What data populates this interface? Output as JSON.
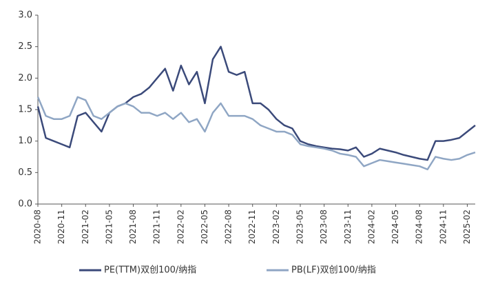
{
  "chart_data": {
    "type": "line",
    "x": [
      "2020-08",
      "2020-09",
      "2020-10",
      "2020-11",
      "2020-12",
      "2021-01",
      "2021-02",
      "2021-03",
      "2021-04",
      "2021-05",
      "2021-06",
      "2021-07",
      "2021-08",
      "2021-09",
      "2021-10",
      "2021-11",
      "2021-12",
      "2022-01",
      "2022-02",
      "2022-03",
      "2022-04",
      "2022-05",
      "2022-06",
      "2022-07",
      "2022-08",
      "2022-09",
      "2022-10",
      "2022-11",
      "2022-12",
      "2023-01",
      "2023-02",
      "2023-03",
      "2023-04",
      "2023-05",
      "2023-06",
      "2023-07",
      "2023-08",
      "2023-09",
      "2023-10",
      "2023-11",
      "2023-12",
      "2024-01",
      "2024-02",
      "2024-03",
      "2024-04",
      "2024-05",
      "2024-06",
      "2024-07",
      "2024-08",
      "2024-09",
      "2024-10",
      "2024-11",
      "2024-12",
      "2025-01",
      "2025-02",
      "2025-03"
    ],
    "series": [
      {
        "name": "PE(TTM)双创100/纳指",
        "color": "#3b4a7a",
        "values": [
          1.55,
          1.05,
          1.0,
          0.95,
          0.9,
          1.4,
          1.45,
          1.3,
          1.15,
          1.45,
          1.55,
          1.6,
          1.7,
          1.75,
          1.85,
          2.0,
          2.15,
          1.8,
          2.2,
          1.9,
          2.1,
          1.6,
          2.3,
          2.5,
          2.1,
          2.05,
          2.1,
          1.6,
          1.6,
          1.5,
          1.35,
          1.25,
          1.2,
          1.0,
          0.95,
          0.92,
          0.9,
          0.88,
          0.87,
          0.85,
          0.9,
          0.75,
          0.8,
          0.88,
          0.85,
          0.82,
          0.78,
          0.75,
          0.72,
          0.7,
          1.0,
          1.0,
          1.02,
          1.05,
          1.15,
          1.25
        ]
      },
      {
        "name": "PB(LF)双创100/纳指",
        "color": "#8fa6c4",
        "values": [
          1.7,
          1.4,
          1.35,
          1.35,
          1.4,
          1.7,
          1.65,
          1.4,
          1.35,
          1.45,
          1.55,
          1.6,
          1.55,
          1.45,
          1.45,
          1.4,
          1.45,
          1.35,
          1.45,
          1.3,
          1.35,
          1.15,
          1.45,
          1.6,
          1.4,
          1.4,
          1.4,
          1.35,
          1.25,
          1.2,
          1.15,
          1.15,
          1.1,
          0.95,
          0.92,
          0.9,
          0.88,
          0.85,
          0.8,
          0.78,
          0.75,
          0.6,
          0.65,
          0.7,
          0.68,
          0.66,
          0.64,
          0.62,
          0.6,
          0.55,
          0.75,
          0.72,
          0.7,
          0.72,
          0.78,
          0.82
        ]
      }
    ],
    "xlim": [
      "2020-08",
      "2025-03"
    ],
    "xticks": [
      "2020-08",
      "2020-11",
      "2021-02",
      "2021-05",
      "2021-08",
      "2021-11",
      "2022-02",
      "2022-05",
      "2022-08",
      "2022-11",
      "2023-02",
      "2023-05",
      "2023-08",
      "2023-11",
      "2024-02",
      "2024-05",
      "2024-08",
      "2024-11",
      "2025-02"
    ],
    "ylim": [
      0,
      3
    ],
    "yticks": [
      {
        "value": 0,
        "label": "0.0"
      },
      {
        "value": 0.5,
        "label": "0.5"
      },
      {
        "value": 1,
        "label": "1.0"
      },
      {
        "value": 1.5,
        "label": "1.5"
      },
      {
        "value": 2,
        "label": "2.0"
      },
      {
        "value": 2.5,
        "label": "2.5"
      },
      {
        "value": 3,
        "label": "3.0"
      }
    ],
    "legend": "bottom"
  }
}
